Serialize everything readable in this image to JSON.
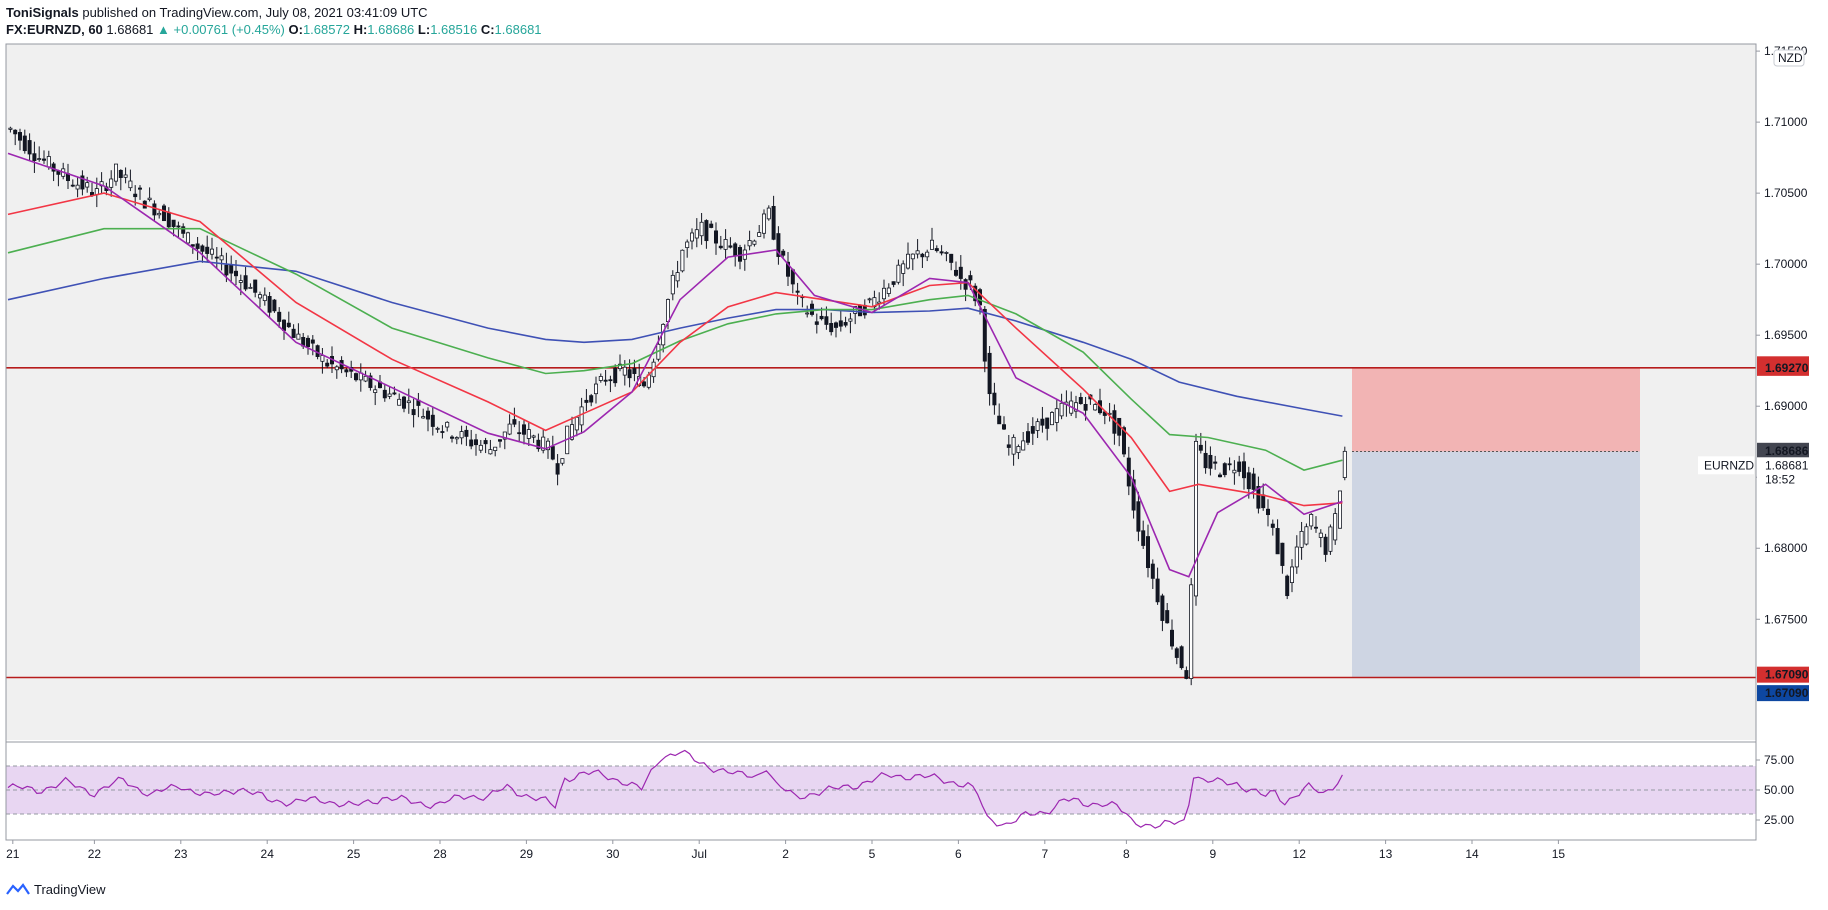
{
  "header": {
    "author": "ToniSignals",
    "published": "published on TradingView.com, July 08, 2021 03:41:09 UTC",
    "symbol_line": "FX:EURNZD, 60",
    "price": "1.68681",
    "change_arrow": "▲",
    "change": "+0.00761 (+0.45%)",
    "o_label": "O:",
    "o_value": "1.68572",
    "h_label": "H:",
    "h_value": "1.68686",
    "l_label": "L:",
    "l_value": "1.68516",
    "c_label": "C:",
    "c_value": "1.68681"
  },
  "footer": {
    "brand": "TradingView"
  },
  "colors": {
    "background": "#f0f0f0",
    "candle": "#131722",
    "ema_purple": "#9c27b0",
    "ema_red": "#f23645",
    "ema_green": "#4caf50",
    "ema_blue": "#3f51b5",
    "level_line": "#b71c1c",
    "stop_zone": "#f2b4b4",
    "target_zone": "#ced5e3",
    "rsi_line": "#9c27b0",
    "rsi_band": "#e8d6f2"
  },
  "chart_data": [
    {
      "type": "candlestick",
      "title": "EURNZD, 60",
      "currency_label": "NZD",
      "y_ticks": [
        "1.71500",
        "1.71000",
        "1.70500",
        "1.70000",
        "1.69500",
        "1.69000",
        "1.68500",
        "1.68000",
        "1.67500"
      ],
      "ylim": [
        1.6665,
        1.7155
      ],
      "x_ticks": [
        "21",
        "22",
        "23",
        "24",
        "25",
        "28",
        "29",
        "30",
        "Jul",
        "2",
        "5",
        "6",
        "7",
        "8",
        "9",
        "12",
        "13",
        "14",
        "15"
      ],
      "price_path": [
        [
          0,
          1.7095
        ],
        [
          6,
          1.7075
        ],
        [
          12,
          1.706
        ],
        [
          18,
          1.705
        ],
        [
          22,
          1.7065
        ],
        [
          28,
          1.7045
        ],
        [
          32,
          1.7035
        ],
        [
          36,
          1.702
        ],
        [
          42,
          1.7005
        ],
        [
          48,
          1.699
        ],
        [
          54,
          1.697
        ],
        [
          60,
          1.6948
        ],
        [
          66,
          1.693
        ],
        [
          72,
          1.692
        ],
        [
          78,
          1.691
        ],
        [
          84,
          1.69
        ],
        [
          90,
          1.6885
        ],
        [
          96,
          1.6875
        ],
        [
          100,
          1.687
        ],
        [
          104,
          1.6885
        ],
        [
          108,
          1.688
        ],
        [
          112,
          1.687
        ],
        [
          114,
          1.6858
        ],
        [
          116,
          1.688
        ],
        [
          120,
          1.6905
        ],
        [
          124,
          1.692
        ],
        [
          128,
          1.6925
        ],
        [
          132,
          1.6915
        ],
        [
          134,
          1.6935
        ],
        [
          137,
          1.6975
        ],
        [
          140,
          1.701
        ],
        [
          144,
          1.7025
        ],
        [
          148,
          1.7015
        ],
        [
          152,
          1.7008
        ],
        [
          156,
          1.7025
        ],
        [
          158,
          1.7035
        ],
        [
          160,
          1.701
        ],
        [
          164,
          1.6975
        ],
        [
          168,
          1.696
        ],
        [
          172,
          1.6955
        ],
        [
          176,
          1.6965
        ],
        [
          180,
          1.6975
        ],
        [
          184,
          1.699
        ],
        [
          188,
          1.7005
        ],
        [
          192,
          1.7012
        ],
        [
          196,
          1.7
        ],
        [
          198,
          1.699
        ],
        [
          200,
          1.6985
        ],
        [
          202,
          1.697
        ],
        [
          204,
          1.6905
        ],
        [
          208,
          1.687
        ],
        [
          212,
          1.688
        ],
        [
          216,
          1.689
        ],
        [
          220,
          1.69
        ],
        [
          224,
          1.6903
        ],
        [
          228,
          1.6897
        ],
        [
          231,
          1.688
        ],
        [
          234,
          1.683
        ],
        [
          237,
          1.679
        ],
        [
          240,
          1.6755
        ],
        [
          243,
          1.6725
        ],
        [
          245,
          1.6712
        ],
        [
          246,
          1.677
        ],
        [
          247,
          1.687
        ],
        [
          249,
          1.686
        ],
        [
          252,
          1.6855
        ],
        [
          256,
          1.686
        ],
        [
          259,
          1.684
        ],
        [
          262,
          1.6822
        ],
        [
          264,
          1.68
        ],
        [
          266,
          1.677
        ],
        [
          268,
          1.68
        ],
        [
          271,
          1.682
        ],
        [
          274,
          1.68
        ],
        [
          276,
          1.682
        ],
        [
          278,
          1.6868
        ]
      ],
      "ema_20": [
        [
          0,
          1.7078
        ],
        [
          20,
          1.7055
        ],
        [
          40,
          1.7008
        ],
        [
          60,
          1.6945
        ],
        [
          80,
          1.6913
        ],
        [
          100,
          1.6881
        ],
        [
          112,
          1.687
        ],
        [
          120,
          1.6882
        ],
        [
          130,
          1.691
        ],
        [
          140,
          1.6975
        ],
        [
          150,
          1.7005
        ],
        [
          160,
          1.701
        ],
        [
          168,
          1.6978
        ],
        [
          180,
          1.6966
        ],
        [
          192,
          1.699
        ],
        [
          200,
          1.6987
        ],
        [
          210,
          1.692
        ],
        [
          224,
          1.6895
        ],
        [
          234,
          1.685
        ],
        [
          242,
          1.6785
        ],
        [
          246,
          1.678
        ],
        [
          252,
          1.6825
        ],
        [
          262,
          1.6845
        ],
        [
          270,
          1.6824
        ],
        [
          278,
          1.6833
        ]
      ],
      "ema_50": [
        [
          0,
          1.7035
        ],
        [
          20,
          1.705
        ],
        [
          40,
          1.703
        ],
        [
          60,
          1.6973
        ],
        [
          80,
          1.6933
        ],
        [
          100,
          1.6903
        ],
        [
          112,
          1.6883
        ],
        [
          120,
          1.6895
        ],
        [
          130,
          1.691
        ],
        [
          140,
          1.6945
        ],
        [
          150,
          1.697
        ],
        [
          160,
          1.698
        ],
        [
          170,
          1.6975
        ],
        [
          180,
          1.697
        ],
        [
          192,
          1.6985
        ],
        [
          200,
          1.6987
        ],
        [
          210,
          1.6955
        ],
        [
          224,
          1.6912
        ],
        [
          234,
          1.6878
        ],
        [
          242,
          1.684
        ],
        [
          248,
          1.6845
        ],
        [
          262,
          1.6837
        ],
        [
          270,
          1.683
        ],
        [
          278,
          1.6832
        ]
      ],
      "ema_100": [
        [
          0,
          1.7008
        ],
        [
          20,
          1.7025
        ],
        [
          40,
          1.7025
        ],
        [
          60,
          1.6993
        ],
        [
          80,
          1.6955
        ],
        [
          100,
          1.6934
        ],
        [
          112,
          1.6923
        ],
        [
          120,
          1.6925
        ],
        [
          130,
          1.693
        ],
        [
          140,
          1.6946
        ],
        [
          150,
          1.6958
        ],
        [
          160,
          1.6965
        ],
        [
          170,
          1.6968
        ],
        [
          180,
          1.6968
        ],
        [
          192,
          1.6975
        ],
        [
          200,
          1.6978
        ],
        [
          210,
          1.6965
        ],
        [
          224,
          1.6938
        ],
        [
          234,
          1.6905
        ],
        [
          242,
          1.688
        ],
        [
          250,
          1.6878
        ],
        [
          262,
          1.6869
        ],
        [
          270,
          1.6855
        ],
        [
          278,
          1.6862
        ]
      ],
      "ema_200": [
        [
          0,
          1.6975
        ],
        [
          20,
          1.699
        ],
        [
          40,
          1.7002
        ],
        [
          60,
          1.6995
        ],
        [
          80,
          1.6973
        ],
        [
          100,
          1.6955
        ],
        [
          112,
          1.6947
        ],
        [
          120,
          1.6945
        ],
        [
          130,
          1.6947
        ],
        [
          140,
          1.6955
        ],
        [
          150,
          1.6962
        ],
        [
          160,
          1.6968
        ],
        [
          170,
          1.6968
        ],
        [
          180,
          1.6966
        ],
        [
          192,
          1.6967
        ],
        [
          200,
          1.6969
        ],
        [
          210,
          1.696
        ],
        [
          224,
          1.6945
        ],
        [
          234,
          1.6933
        ],
        [
          244,
          1.6917
        ],
        [
          256,
          1.6907
        ],
        [
          270,
          1.6898
        ],
        [
          278,
          1.6893
        ]
      ],
      "levels": [
        {
          "price": 1.6927,
          "label": "1.69270"
        },
        {
          "price": 1.6709,
          "label": "1.67090"
        }
      ],
      "position": {
        "entry": 1.68681,
        "stop": 1.6927,
        "target": 1.6709,
        "start_bar": 280,
        "end_bar": 340
      },
      "price_labels": [
        {
          "text": "1.69270",
          "price": 1.69295,
          "style": "red"
        },
        {
          "text": "1.69270",
          "price": 1.6927,
          "style": "red"
        },
        {
          "text": "1.68686",
          "price": 1.68686,
          "style": "dark"
        },
        {
          "text": "1.68681",
          "price": 1.68584,
          "style": "plain"
        },
        {
          "text": "18:52",
          "price": 1.68484,
          "style": "plain"
        },
        {
          "text": "1.67090",
          "price": 1.6711,
          "style": "red"
        },
        {
          "text": "1.67090",
          "price": 1.6698,
          "style": "blue"
        }
      ],
      "symbol_tag": "EURNZD"
    },
    {
      "type": "line",
      "title": "",
      "y_ticks": [
        "75.00",
        "50.00",
        "25.00"
      ],
      "ylim": [
        10,
        90
      ],
      "band": [
        30,
        70
      ],
      "midline": 50,
      "rsi": [
        [
          0,
          52
        ],
        [
          6,
          50
        ],
        [
          12,
          56
        ],
        [
          18,
          48
        ],
        [
          24,
          58
        ],
        [
          30,
          46
        ],
        [
          36,
          54
        ],
        [
          42,
          44
        ],
        [
          48,
          52
        ],
        [
          54,
          42
        ],
        [
          60,
          40
        ],
        [
          66,
          42
        ],
        [
          72,
          36
        ],
        [
          78,
          44
        ],
        [
          84,
          40
        ],
        [
          90,
          38
        ],
        [
          96,
          46
        ],
        [
          100,
          44
        ],
        [
          104,
          52
        ],
        [
          108,
          46
        ],
        [
          112,
          40
        ],
        [
          114,
          36
        ],
        [
          116,
          60
        ],
        [
          120,
          64
        ],
        [
          124,
          62
        ],
        [
          128,
          58
        ],
        [
          132,
          50
        ],
        [
          136,
          78
        ],
        [
          140,
          82
        ],
        [
          144,
          72
        ],
        [
          148,
          68
        ],
        [
          152,
          62
        ],
        [
          156,
          62
        ],
        [
          158,
          70
        ],
        [
          160,
          54
        ],
        [
          164,
          44
        ],
        [
          168,
          48
        ],
        [
          172,
          50
        ],
        [
          176,
          54
        ],
        [
          180,
          58
        ],
        [
          184,
          62
        ],
        [
          188,
          62
        ],
        [
          192,
          60
        ],
        [
          196,
          58
        ],
        [
          198,
          56
        ],
        [
          200,
          54
        ],
        [
          202,
          46
        ],
        [
          204,
          26
        ],
        [
          208,
          22
        ],
        [
          212,
          28
        ],
        [
          216,
          32
        ],
        [
          220,
          42
        ],
        [
          224,
          38
        ],
        [
          228,
          40
        ],
        [
          231,
          36
        ],
        [
          234,
          24
        ],
        [
          237,
          22
        ],
        [
          240,
          20
        ],
        [
          243,
          22
        ],
        [
          245,
          24
        ],
        [
          246,
          40
        ],
        [
          247,
          64
        ],
        [
          249,
          58
        ],
        [
          252,
          56
        ],
        [
          256,
          56
        ],
        [
          259,
          50
        ],
        [
          262,
          44
        ],
        [
          264,
          48
        ],
        [
          266,
          40
        ],
        [
          268,
          46
        ],
        [
          271,
          52
        ],
        [
          274,
          46
        ],
        [
          276,
          54
        ],
        [
          278,
          62
        ]
      ]
    }
  ]
}
